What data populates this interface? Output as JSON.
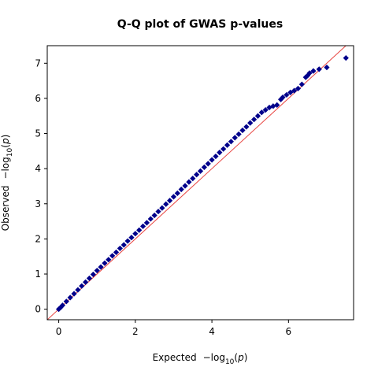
{
  "chart_data": {
    "type": "scatter",
    "title": "Q-Q plot of GWAS p-values",
    "xlabel": {
      "prefix": "Expected",
      "sub": "10",
      "var": "p"
    },
    "ylabel": {
      "prefix": "Observed",
      "sub": "10",
      "var": "p"
    },
    "xlim": [
      -0.3,
      7.7
    ],
    "ylim": [
      -0.3,
      7.5
    ],
    "xticks": [
      0,
      2,
      4,
      6
    ],
    "yticks": [
      0,
      1,
      2,
      3,
      4,
      5,
      6,
      7
    ],
    "reference_line": {
      "slope": 1,
      "intercept": 0,
      "color": "#e8433f"
    },
    "marker": {
      "shape": "diamond",
      "color": "#00008b"
    },
    "grid": false,
    "legend": "none",
    "series": [
      {
        "x": [
          0,
          0.05,
          0.1,
          0.2,
          0.3,
          0.4,
          0.5,
          0.6,
          0.7,
          0.8,
          0.9,
          1.0,
          1.1,
          1.2,
          1.3,
          1.4,
          1.5,
          1.6,
          1.7,
          1.8,
          1.9,
          2.0,
          2.1,
          2.2,
          2.3,
          2.4,
          2.5,
          2.6,
          2.7,
          2.8,
          2.9,
          3.0,
          3.1,
          3.2,
          3.3,
          3.4,
          3.5,
          3.6,
          3.7,
          3.8,
          3.9,
          4.0,
          4.1,
          4.2,
          4.3,
          4.4,
          4.5,
          4.6,
          4.7,
          4.8,
          4.9,
          5.0,
          5.1,
          5.2,
          5.3,
          5.4,
          5.5,
          5.6,
          5.7,
          5.8,
          5.85,
          5.95,
          6.05,
          6.15,
          6.25,
          6.35,
          6.45,
          6.5,
          6.55,
          6.65,
          6.8,
          7.0,
          7.5
        ],
        "y": [
          0,
          0.05,
          0.11,
          0.22,
          0.33,
          0.44,
          0.55,
          0.66,
          0.77,
          0.88,
          0.99,
          1.1,
          1.2,
          1.31,
          1.41,
          1.52,
          1.62,
          1.73,
          1.83,
          1.94,
          2.04,
          2.15,
          2.25,
          2.36,
          2.46,
          2.57,
          2.67,
          2.78,
          2.88,
          2.99,
          3.09,
          3.2,
          3.3,
          3.41,
          3.51,
          3.62,
          3.72,
          3.83,
          3.93,
          4.04,
          4.14,
          4.25,
          4.35,
          4.46,
          4.56,
          4.67,
          4.77,
          4.88,
          4.98,
          5.09,
          5.19,
          5.3,
          5.4,
          5.5,
          5.6,
          5.67,
          5.74,
          5.78,
          5.81,
          5.97,
          6.03,
          6.1,
          6.17,
          6.22,
          6.28,
          6.4,
          6.6,
          6.65,
          6.72,
          6.78,
          6.83,
          6.88,
          7.15
        ]
      }
    ]
  }
}
